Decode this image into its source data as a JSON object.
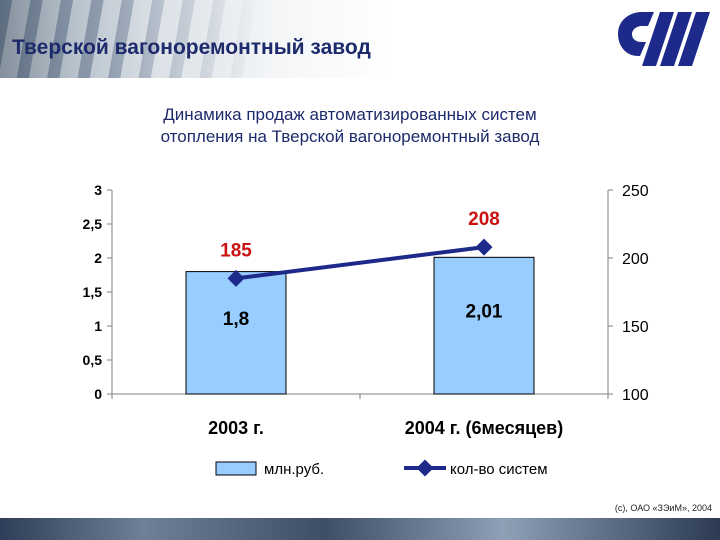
{
  "header": {
    "title": "Тверской вагоноремонтный завод"
  },
  "footer": {
    "copyright": "(с), ОАО «ЗЭиМ», 2004"
  },
  "colors": {
    "bar_fill": "#99ccff",
    "line_color": "#1d2a8a",
    "line_label_color": "#cc1111",
    "title_color": "#1d2a6b"
  },
  "chart_data": {
    "type": "bar",
    "title_lines": [
      "Динамика продаж автоматизированных систем",
      "отопления на Тверской вагоноремонтный завод"
    ],
    "categories": [
      "2003 г.",
      "2004 г. (6месяцев)"
    ],
    "series": [
      {
        "name": "млн.руб.",
        "type": "bar",
        "axis": "left",
        "values": [
          1.8,
          2.01
        ],
        "labels": [
          "1,8",
          "2,01"
        ]
      },
      {
        "name": "кол-во систем",
        "type": "line",
        "axis": "right",
        "values": [
          185,
          208
        ],
        "labels": [
          "185",
          "208"
        ]
      }
    ],
    "y_left": {
      "ylim": [
        0,
        3
      ],
      "ticks": [
        "0",
        "0,5",
        "1",
        "1,5",
        "2",
        "2,5",
        "3"
      ]
    },
    "y_right": {
      "ylim": [
        100,
        250
      ],
      "ticks": [
        "100",
        "150",
        "200",
        "250"
      ]
    },
    "grid": false,
    "legend_position": "bottom"
  }
}
